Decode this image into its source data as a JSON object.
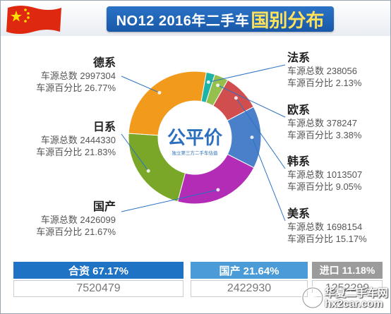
{
  "header": {
    "title_main": "NO12 2016年二手车",
    "title_accent": "国别分布"
  },
  "logo": {
    "name": "公平价",
    "tagline": "独立第三方二手车估值"
  },
  "colors": {
    "title_bg": "#1f65b7",
    "accent": "#ffe15a",
    "joint": "#1e73c4",
    "domestic": "#4b9bd8",
    "import": "#9b9b9b"
  },
  "chart_data": {
    "type": "pie",
    "donut": true,
    "title": "NO12 2016年二手车国别分布",
    "slices": [
      {
        "key": "fa",
        "name": "法系",
        "count": 238056,
        "percent": 2.13,
        "color": "#1fb3a6"
      },
      {
        "key": "ou",
        "name": "欧系",
        "count": 378247,
        "percent": 3.38,
        "color": "#96c04e"
      },
      {
        "key": "han",
        "name": "韩系",
        "count": 1013507,
        "percent": 9.05,
        "color": "#d14e4e"
      },
      {
        "key": "mei",
        "name": "美系",
        "count": 1698154,
        "percent": 15.17,
        "color": "#4a7fca"
      },
      {
        "key": "guo",
        "name": "国产",
        "count": 2426099,
        "percent": 21.67,
        "color": "#b32cb5"
      },
      {
        "key": "ri",
        "name": "日系",
        "count": 2444330,
        "percent": 21.83,
        "color": "#7aa728"
      },
      {
        "key": "de",
        "name": "德系",
        "count": 2997304,
        "percent": 26.77,
        "color": "#f29a1c"
      }
    ],
    "count_label": "车源总数",
    "percent_label": "车源百分比"
  },
  "labels": {
    "de": {
      "name": "德系",
      "line1": "车源总数 2997304",
      "line2": "车源百分比 26.77%"
    },
    "ri": {
      "name": "日系",
      "line1": "车源总数 2444330",
      "line2": "车源百分比 21.83%"
    },
    "guo": {
      "name": "国产",
      "line1": "车源总数 2426099",
      "line2": "车源百分比 21.67%"
    },
    "fa": {
      "name": "法系",
      "line1": "车源总数 238056",
      "line2": "车源百分比 2.13%"
    },
    "ou": {
      "name": "欧系",
      "line1": "车源总数 378247",
      "line2": "车源百分比 3.38%"
    },
    "han": {
      "name": "韩系",
      "line1": "车源总数 1013507",
      "line2": "车源百分比 9.05%"
    },
    "mei": {
      "name": "美系",
      "line1": "车源总数 1698154",
      "line2": "车源百分比 15.17%"
    }
  },
  "summary": {
    "joint": {
      "label": "合资 67.17%",
      "value": "7520479"
    },
    "domestic": {
      "label": "国产 21.64%",
      "value": "2422930"
    },
    "import": {
      "label": "进口 11.18%",
      "value": "1252299"
    }
  },
  "watermark": {
    "line1": "华夏二手车网",
    "line2": "hx2car.com"
  }
}
